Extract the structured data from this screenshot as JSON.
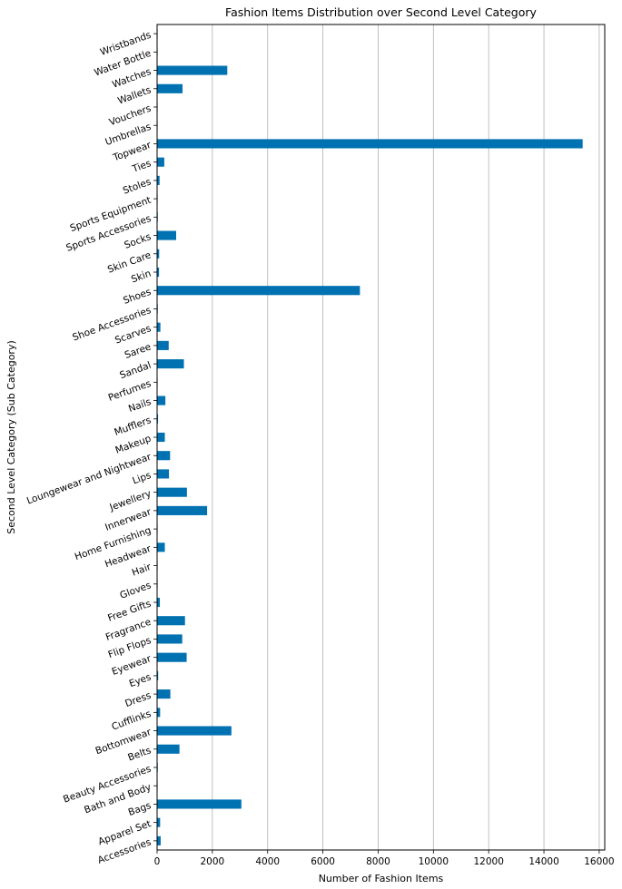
{
  "chart_data": {
    "type": "bar",
    "orientation": "horizontal",
    "title": "Fashion Items Distribution over Second Level Category",
    "xlabel": "Number of Fashion Items",
    "ylabel": "Second Level Category (Sub Category)",
    "xlim": [
      0,
      16200
    ],
    "xticks": [
      0,
      2000,
      4000,
      6000,
      8000,
      10000,
      12000,
      14000,
      16000
    ],
    "xtick_labels": [
      "0",
      "2000",
      "4000",
      "6000",
      "8000",
      "10000",
      "12000",
      "14000",
      "16000"
    ],
    "grid": "vertical",
    "bar_color": "#0072b2",
    "categories": [
      "Accessories",
      "Apparel Set",
      "Bags",
      "Bath and Body",
      "Beauty Accessories",
      "Belts",
      "Bottomwear",
      "Cufflinks",
      "Dress",
      "Eyes",
      "Eyewear",
      "Flip Flops",
      "Fragrance",
      "Free Gifts",
      "Gloves",
      "Hair",
      "Headwear",
      "Home Furnishing",
      "Innerwear",
      "Jewellery",
      "Lips",
      "Loungewear and Nightwear",
      "Makeup",
      "Mufflers",
      "Nails",
      "Perfumes",
      "Sandal",
      "Saree",
      "Scarves",
      "Shoe Accessories",
      "Shoes",
      "Skin",
      "Skin Care",
      "Socks",
      "Sports Accessories",
      "Sports Equipment",
      "Stoles",
      "Ties",
      "Topwear",
      "Umbrellas",
      "Vouchers",
      "Wallets",
      "Watches",
      "Water Bottle",
      "Wristbands"
    ],
    "values": [
      130,
      110,
      3050,
      5,
      25,
      810,
      2690,
      110,
      480,
      40,
      1070,
      910,
      1010,
      100,
      20,
      20,
      280,
      5,
      1810,
      1080,
      430,
      470,
      280,
      35,
      300,
      5,
      970,
      420,
      120,
      25,
      7340,
      70,
      75,
      690,
      25,
      20,
      90,
      260,
      15400,
      5,
      5,
      920,
      2540,
      5,
      5
    ]
  }
}
